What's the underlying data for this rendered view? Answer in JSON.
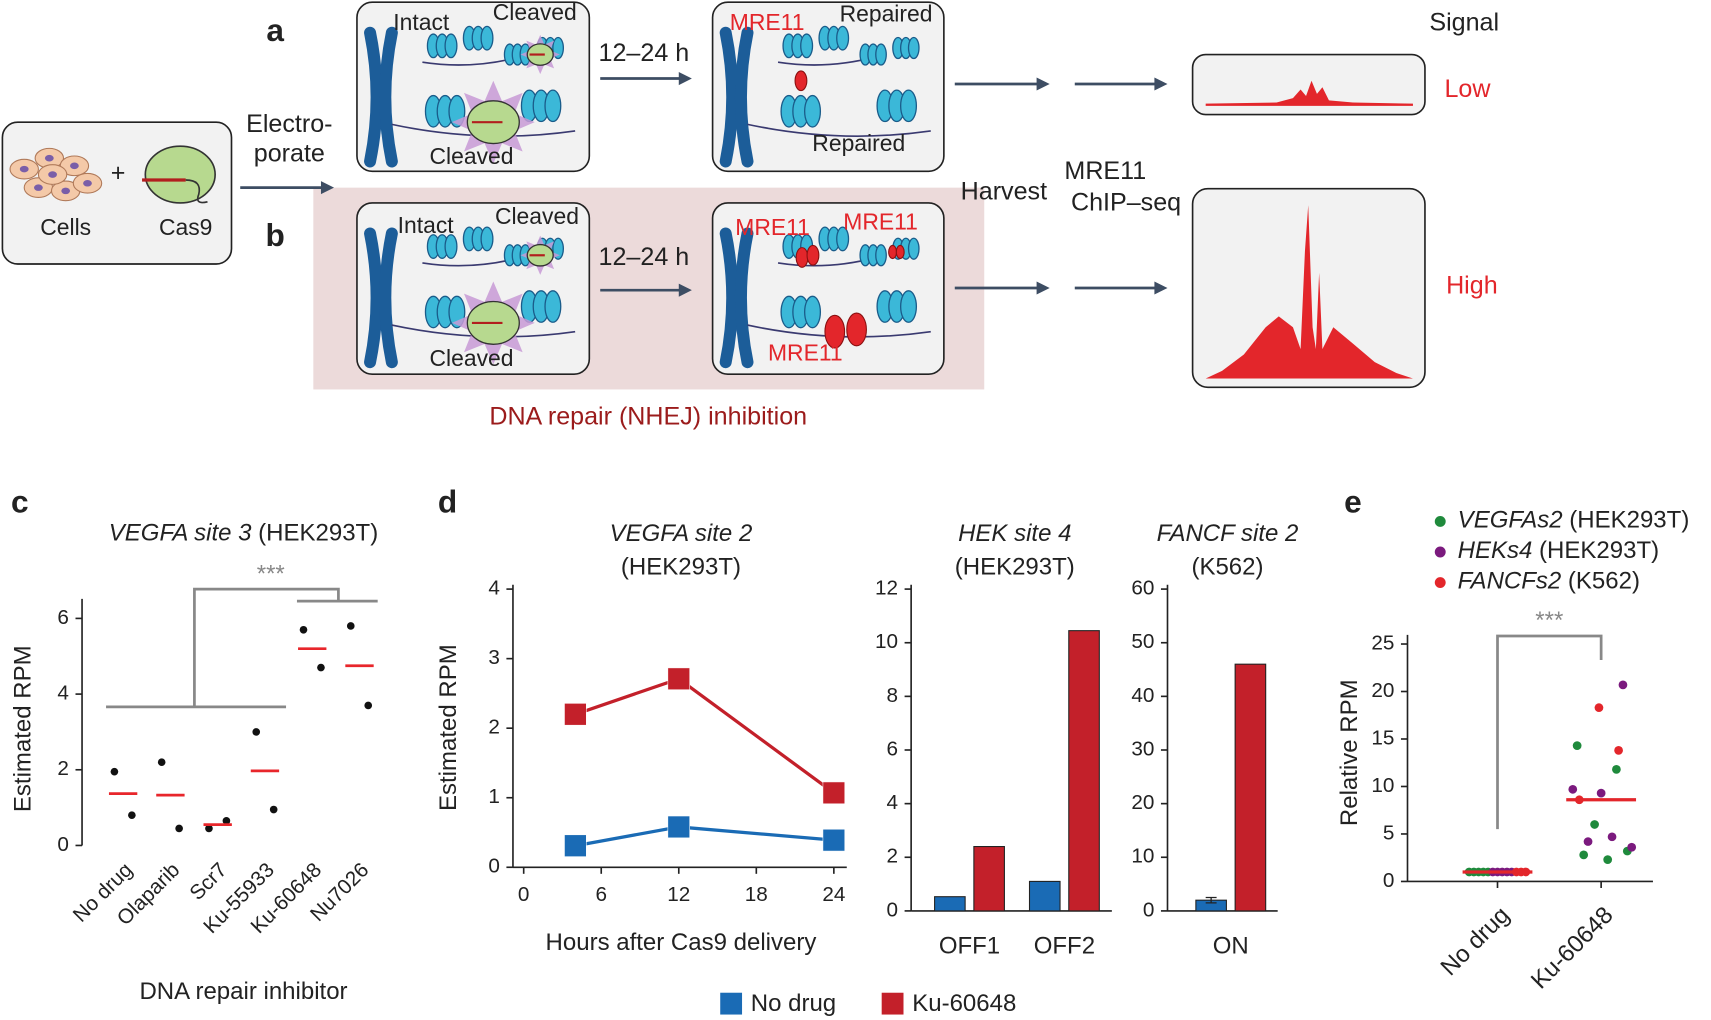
{
  "diagram": {
    "panel_a": "a",
    "panel_b": "b",
    "cells": "Cells",
    "plus": "+",
    "cas9": "Cas9",
    "electroporate": [
      "Electro-",
      "porate"
    ],
    "a_step1": {
      "intact": "Intact",
      "cleaved_top": "Cleaved",
      "cleaved_bottom": "Cleaved"
    },
    "a_time": "12–24 h",
    "a_step2": {
      "mre11": "MRE11",
      "repaired_top": "Repaired",
      "repaired_bottom": "Repaired"
    },
    "signal": "Signal",
    "low": "Low",
    "b_step1": {
      "intact": "Intact",
      "cleaved_top": "Cleaved",
      "cleaved_bottom": "Cleaved"
    },
    "b_time": "12–24 h",
    "b_step2": {
      "mre11": [
        "MRE11",
        "MRE11",
        "MRE11"
      ]
    },
    "harvest": "Harvest",
    "chip": [
      "MRE11",
      "ChIP–seq"
    ],
    "high": "High",
    "inhibition": "DNA repair (NHEJ) inhibition"
  },
  "panels": {
    "c": "c",
    "d": "d",
    "e": "e"
  },
  "chart_data": [
    {
      "type": "dot",
      "title": {
        "text": "VEGFA site 3",
        "suffix": "(HEK293T)"
      },
      "categories": [
        "No drug",
        "Olaparib",
        "Scr7",
        "Ku-55933",
        "Ku-60648",
        "Nu7026"
      ],
      "points": [
        [
          1.95,
          0.8
        ],
        [
          2.2,
          0.45
        ],
        [
          0.45,
          0.65
        ],
        [
          3.0,
          0.95
        ],
        [
          5.7,
          4.7
        ],
        [
          5.8,
          3.7
        ]
      ],
      "means": [
        1.37,
        1.33,
        0.55,
        1.97,
        5.2,
        4.75
      ],
      "point_color": "#111111",
      "mean_color": "#e8262b",
      "ylabel": "Estimated RPM",
      "xlabel": "DNA repair inhibitor",
      "ylim": [
        0,
        6.4
      ],
      "yticks": [
        0,
        2,
        4,
        6
      ],
      "annotation": "***"
    },
    {
      "type": "line",
      "title": {
        "text": "VEGFA site 2",
        "suffix": "(HEK293T)"
      },
      "x": [
        4,
        12,
        24
      ],
      "series": [
        {
          "name": "No drug",
          "color": "#1a6bb5",
          "values": [
            0.31,
            0.58,
            0.39
          ]
        },
        {
          "name": "Ku-60648",
          "color": "#c3202a",
          "values": [
            2.2,
            2.71,
            1.07
          ]
        }
      ],
      "xlim": [
        -1,
        25
      ],
      "xticks": [
        0,
        6,
        12,
        18,
        24
      ],
      "ylim": [
        0,
        4
      ],
      "yticks": [
        0,
        1,
        2,
        3,
        4
      ],
      "xlabel": "Hours after Cas9 delivery",
      "ylabel": "Estimated RPM"
    },
    {
      "type": "bar",
      "title": {
        "text": "HEK site 4",
        "suffix": "(HEK293T)"
      },
      "categories": [
        "OFF1",
        "OFF2"
      ],
      "series": [
        {
          "color": "#1a6bb5",
          "values": [
            0.53,
            1.1
          ]
        },
        {
          "color": "#c3202a",
          "values": [
            2.4,
            10.45
          ]
        }
      ],
      "ylim": [
        0,
        12
      ],
      "yticks": [
        0,
        2,
        4,
        6,
        8,
        10,
        12
      ]
    },
    {
      "type": "bar",
      "title": {
        "text": "FANCF site 2",
        "suffix": "(K562)"
      },
      "categories": [
        "ON"
      ],
      "series": [
        {
          "color": "#1a6bb5",
          "values": [
            2.0
          ],
          "errors": [
            0.5
          ]
        },
        {
          "color": "#c3202a",
          "values": [
            46
          ]
        }
      ],
      "ylim": [
        0,
        60
      ],
      "yticks": [
        0,
        10,
        20,
        30,
        40,
        50,
        60
      ]
    },
    {
      "type": "strip",
      "categories": [
        "No drug",
        "Ku-60648"
      ],
      "series": [
        {
          "name": "VEGFAs2",
          "cell": "(HEK293T)",
          "color": "#1f8a3c",
          "values": [
            [
              1,
              1,
              1,
              1,
              1
            ],
            [
              14.3,
              11.8,
              6.0,
              3.2,
              2.8,
              2.3
            ]
          ]
        },
        {
          "name": "HEKs4",
          "cell": "(HEK293T)",
          "color": "#7b1a7e",
          "values": [
            [
              1,
              1,
              1,
              1,
              1
            ],
            [
              20.7,
              9.7,
              9.3,
              4.7,
              4.2,
              3.6
            ]
          ]
        },
        {
          "name": "FANCFs2",
          "cell": "(K562)",
          "color": "#e3262b",
          "values": [
            [
              1,
              1,
              1
            ],
            [
              18.3,
              13.8,
              8.6
            ]
          ]
        }
      ],
      "means": [
        1,
        8.6
      ],
      "mean_color": "#e3262b",
      "ylabel": "Relative RPM",
      "ylim": [
        0,
        25.5
      ],
      "yticks": [
        0,
        5,
        10,
        15,
        20,
        25
      ],
      "annotation": "***"
    }
  ]
}
